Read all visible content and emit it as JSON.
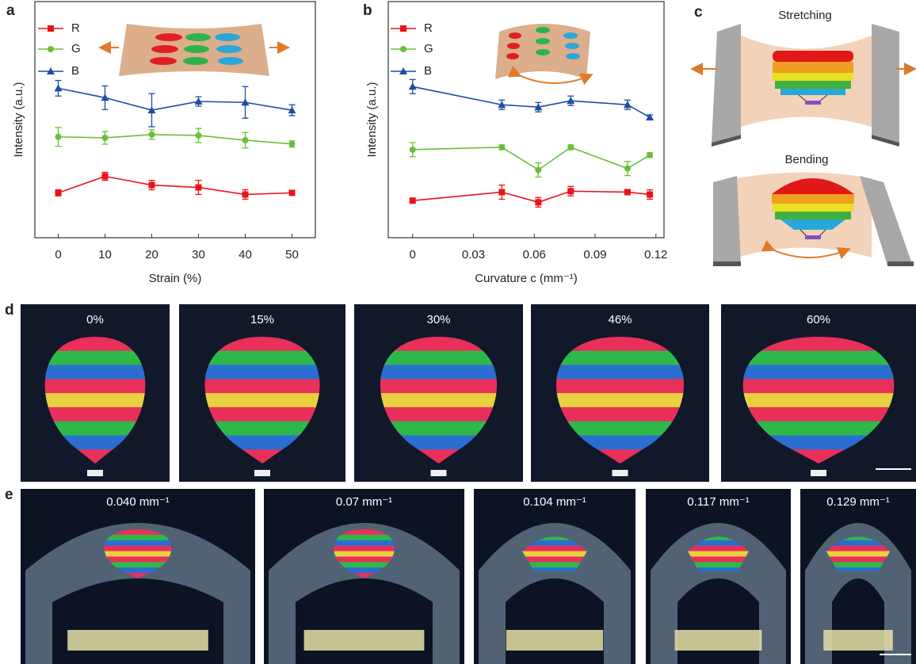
{
  "panel_labels": [
    "a",
    "b",
    "c",
    "d",
    "e"
  ],
  "chart_data": [
    {
      "type": "line",
      "xlabel": "Strain (%)",
      "ylabel": "Intensity (a.u.)",
      "x": [
        0,
        10,
        20,
        30,
        40,
        50
      ],
      "xlim": [
        -5,
        55
      ],
      "xticks": [
        0,
        10,
        20,
        30,
        40,
        50
      ],
      "ylim": [
        0,
        100
      ],
      "series": [
        {
          "name": "R",
          "color": "#e8141c",
          "marker": "square",
          "values": [
            19,
            26,
            22.3,
            21.3,
            18.3,
            19
          ],
          "errors": [
            1.3,
            1.7,
            2,
            3,
            2,
            0.7
          ]
        },
        {
          "name": "G",
          "color": "#6abf3a",
          "marker": "circle",
          "values": [
            42.7,
            42.3,
            43.7,
            43.3,
            41.3,
            39.7
          ],
          "errors": [
            4,
            2.7,
            2,
            3,
            3.3,
            1.3
          ]
        },
        {
          "name": "B",
          "color": "#1f4ea1",
          "marker": "triangle",
          "values": [
            63.3,
            59.3,
            54,
            57.7,
            57.3,
            54
          ],
          "errors": [
            3.3,
            5,
            7,
            2,
            6.7,
            2.3
          ]
        }
      ]
    },
    {
      "type": "line",
      "xlabel": "Curvature c (mm⁻¹)",
      "ylabel": "Intensity (a.u.)",
      "x": [
        0,
        0.044,
        0.062,
        0.078,
        0.106,
        0.117
      ],
      "xlim": [
        -0.012,
        0.124
      ],
      "xticks": [
        0,
        0.03,
        0.06,
        0.09,
        0.12
      ],
      "ylim": [
        0,
        100
      ],
      "series": [
        {
          "name": "R",
          "color": "#e8141c",
          "marker": "square",
          "values": [
            15.7,
            19.3,
            15,
            19.7,
            19.3,
            18.3
          ],
          "errors": [
            1,
            3,
            2,
            2,
            1,
            2
          ]
        },
        {
          "name": "G",
          "color": "#6abf3a",
          "marker": "circle",
          "values": [
            37.3,
            38.3,
            28.7,
            38.3,
            29.3,
            35
          ],
          "errors": [
            3,
            1,
            3,
            1,
            3,
            1
          ]
        },
        {
          "name": "B",
          "color": "#1f4ea1",
          "marker": "triangle",
          "values": [
            64,
            56.3,
            55.3,
            58,
            56.3,
            51
          ],
          "errors": [
            3,
            2,
            2,
            2,
            2,
            1
          ]
        }
      ]
    }
  ],
  "diagram_c": {
    "labels": [
      "Stretching",
      "Bending"
    ]
  },
  "photos_d": {
    "labels": [
      "0%",
      "15%",
      "30%",
      "46%",
      "60%"
    ]
  },
  "photos_e": {
    "labels": [
      "0.040 mm⁻¹",
      "0.07 mm⁻¹",
      "0.104 mm⁻¹",
      "0.117 mm⁻¹",
      "0.129 mm⁻¹"
    ]
  }
}
